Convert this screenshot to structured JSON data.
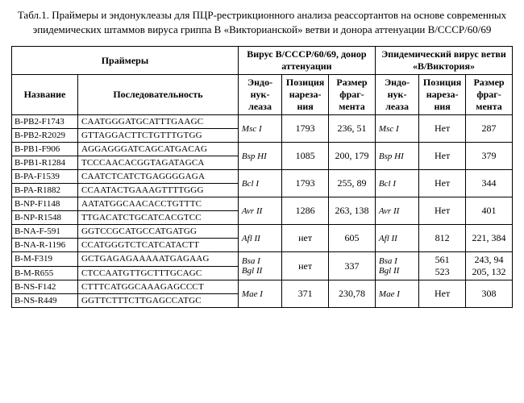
{
  "title": "Табл.1. Праймеры и эндонуклеазы для ПЦР-рестрикционного анализа реассортантов на основе современных эпидемических штаммов вируса гриппа В «Викторианской» ветви и донора аттенуации В/СССР/60/69",
  "headers": {
    "primers": "Праймеры",
    "donor": "Вирус В/СССР/60/69, донор аттенуации",
    "epi": "Эпидемический вирус ветви «В/Виктория»",
    "name": "Название",
    "seq": "Последовательность",
    "endo": "Эндо-нук-леаза",
    "pos": "Позиция нареза-ния",
    "size": "Размер фраг-мента"
  },
  "rows": [
    {
      "n": "B-PB2-F1743",
      "s": "CAATGGGATGCATTTGAAGC",
      "g": {
        "e": "Msc I",
        "p": "1793",
        "z": "236, 51",
        "e2": "Msc I",
        "p2": "Нет",
        "z2": "287"
      }
    },
    {
      "n": "B-PB2-R2029",
      "s": "GTTAGGACTTCTGTTTGTGG"
    },
    {
      "n": "B-PB1-F906",
      "s": "AGGAGGGATCAGCATGACAG",
      "g": {
        "e": "Bsp HI",
        "p": "1085",
        "z": "200, 179",
        "e2": "Bsp HI",
        "p2": "Нет",
        "z2": "379"
      }
    },
    {
      "n": "B-PB1-R1284",
      "s": "TCCCAACACGGTAGATAGCA"
    },
    {
      "n": "B-PA-F1539",
      "s": "CAATCTCATCTGAGGGGAGA",
      "g": {
        "e": "Bcl I",
        "p": "1793",
        "z": "255, 89",
        "e2": "Bcl I",
        "p2": "Нет",
        "z2": "344"
      }
    },
    {
      "n": "B-PA-R1882",
      "s": "CCAATACTGAAAGTTTTGGG"
    },
    {
      "n": "B-NP-F1148",
      "s": "AATATGGCAACACCTGTTTC",
      "g": {
        "e": "Avr II",
        "p": "1286",
        "z": "263, 138",
        "e2": "Avr II",
        "p2": "Нет",
        "z2": "401"
      }
    },
    {
      "n": "B-NP-R1548",
      "s": "TTGACATCTGCATCACGTCC"
    },
    {
      "n": "B-NA-F-591",
      "s": "GGTCCGCATGCCATGATGG",
      "g": {
        "e": "Afl II",
        "p": "нет",
        "z": "605",
        "e2": "Afl II",
        "p2": "812",
        "z2": "221, 384"
      }
    },
    {
      "n": "B-NA-R-1196",
      "s": "CCATGGGTCTCATCATACTT"
    },
    {
      "n": "B-M-F319",
      "s": "GCTGAGAGAAAAATGAGAAG",
      "g": {
        "e": "Bsa I\nBgl II",
        "p": "нет",
        "z": "337",
        "e2": "Bsa I\nBgl II",
        "p2": "561\n523",
        "z2": "243, 94\n205, 132"
      }
    },
    {
      "n": "B-M-R655",
      "s": "CTCCAATGTTGCTTTGCAGC"
    },
    {
      "n": "B-NS-F142",
      "s": "CTTTCATGGCAAAGAGCCCT",
      "g": {
        "e": "Mae I",
        "p": "371",
        "z": "230,78",
        "e2": "Mae I",
        "p2": "Нет",
        "z2": "308"
      }
    },
    {
      "n": "B-NS-R449",
      "s": "GGTTCTTTCTTGAGCCATGC"
    }
  ]
}
